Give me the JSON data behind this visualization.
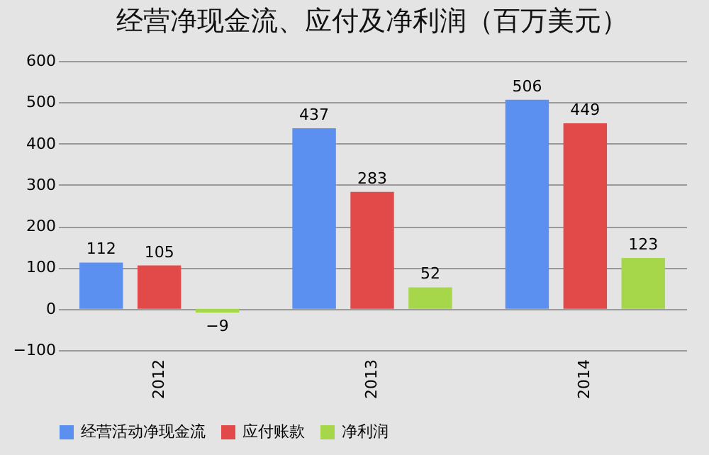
{
  "chart_data": {
    "type": "bar",
    "title": "经营净现金流、应付及净利润（百万美元）",
    "categories": [
      "2012",
      "2013",
      "2014"
    ],
    "series": [
      {
        "name": "经营活动净现金流",
        "color": "#5b8ff0",
        "values": [
          112,
          437,
          506
        ]
      },
      {
        "name": "应付账款",
        "color": "#e24a4a",
        "values": [
          105,
          283,
          449
        ]
      },
      {
        "name": "净利润",
        "color": "#a6d64a",
        "values": [
          -9,
          52,
          123
        ]
      }
    ],
    "ylim": [
      -100,
      600
    ],
    "yticks": [
      -100,
      0,
      100,
      200,
      300,
      400,
      500,
      600
    ],
    "grid": "y",
    "legend": "bottom",
    "data_labels": true
  }
}
